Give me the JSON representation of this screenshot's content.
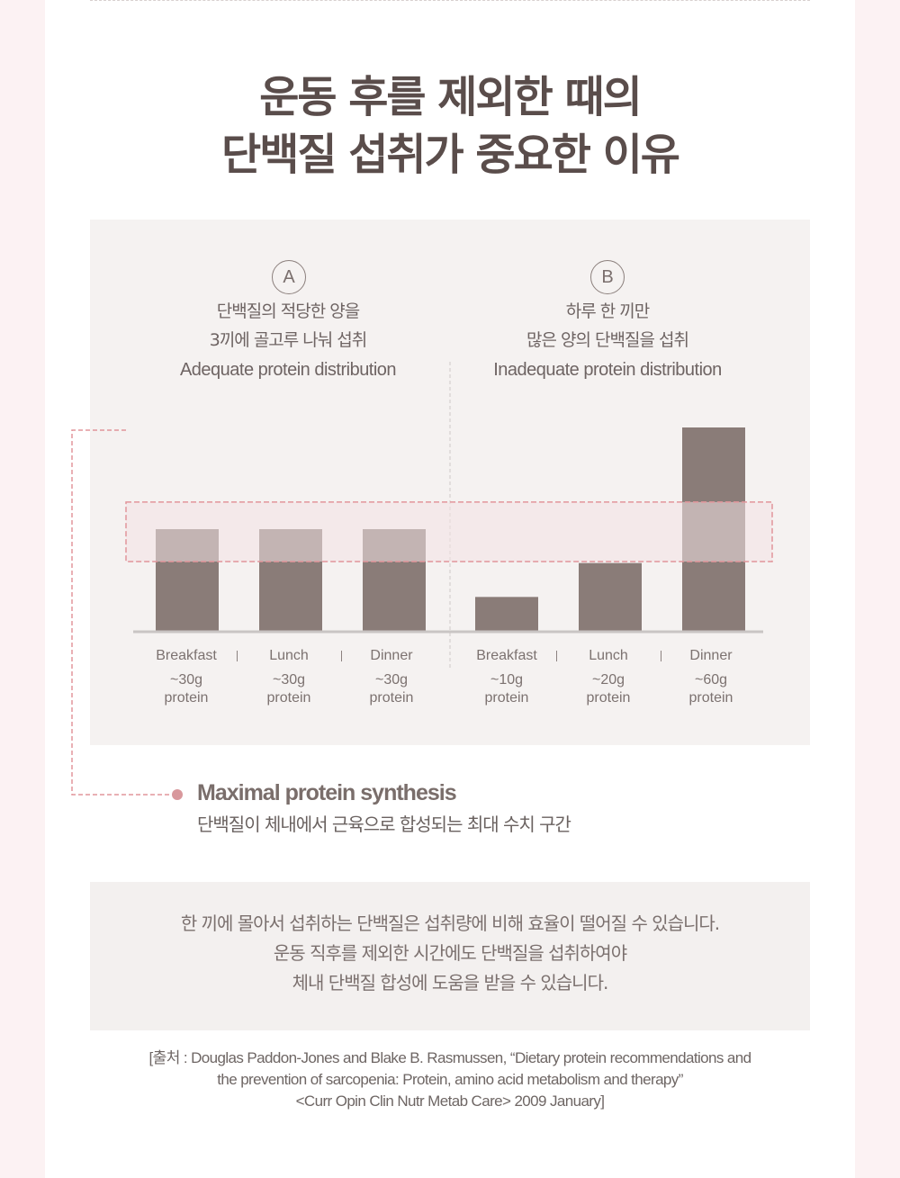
{
  "title": {
    "line1": "운동 후를 제외한 때의",
    "line2": "단백질 섭취가 중요한 이유"
  },
  "groups": [
    {
      "badge": "A",
      "kr_line1": "단백질의 적당한 양을",
      "kr_line2": "3끼에 골고루 나눠 섭취",
      "en": "Adequate protein distribution"
    },
    {
      "badge": "B",
      "kr_line1": "하루 한 끼만",
      "kr_line2": "많은 양의 단백질을 섭취",
      "en": "Inadequate protein distribution"
    }
  ],
  "chart_data": {
    "type": "bar",
    "groups": [
      "A",
      "B"
    ],
    "categories": [
      "Breakfast",
      "Lunch",
      "Dinner",
      "Breakfast",
      "Lunch",
      "Dinner"
    ],
    "values": [
      30,
      30,
      30,
      10,
      20,
      60
    ],
    "value_labels": [
      "~30g",
      "~30g",
      "~30g",
      "~10g",
      "~20g",
      "~60g"
    ],
    "unit_label": "protein",
    "bar_color": "#8a7c78",
    "highlight_color": "#f2e2e3",
    "highlight_border": "#e2959b",
    "highlight_band": [
      30,
      38
    ],
    "ylim": [
      0,
      60
    ],
    "title": "",
    "xlabel": "",
    "ylabel": ""
  },
  "legend": {
    "title": "Maximal protein synthesis",
    "desc": "단백질이 체내에서 근육으로 합성되는 최대 수치 구간"
  },
  "note": {
    "line1": "한 끼에 몰아서 섭취하는 단백질은 섭취량에 비해 효율이 떨어질 수 있습니다.",
    "line2": "운동 직후를 제외한 시간에도 단백질을 섭취하여야",
    "line3": "체내 단백질 합성에 도움을 받을 수 있습니다."
  },
  "source": {
    "line1": "[출처 : Douglas Paddon-Jones and Blake B. Rasmussen, “Dietary protein recommendations and",
    "line2": "the prevention of sarcopenia: Protein, amino acid metabolism and therapy”",
    "line3": "<Curr Opin Clin Nutr Metab Care> 2009 January]"
  }
}
